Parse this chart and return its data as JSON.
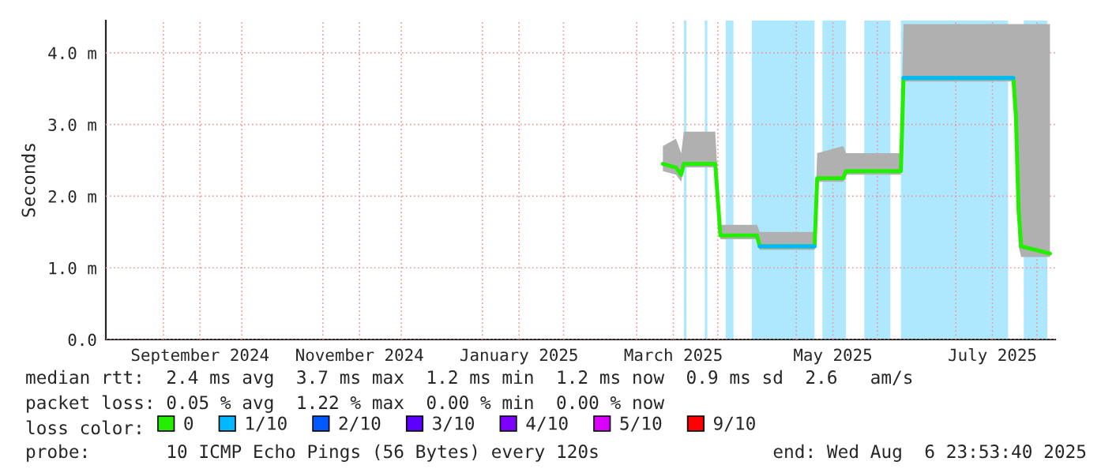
{
  "chart_data": {
    "type": "line",
    "ylabel": "Seconds",
    "xlim": [
      "2024-08-10",
      "2025-08-08"
    ],
    "xticks": [
      {
        "value": "2024-09-01",
        "label": null
      },
      {
        "value": "2024-09-15",
        "label": "September 2024"
      },
      {
        "value": "2024-10-01",
        "label": null
      },
      {
        "value": "2024-11-01",
        "label": null
      },
      {
        "value": "2024-11-15",
        "label": "November 2024"
      },
      {
        "value": "2024-12-01",
        "label": null
      },
      {
        "value": "2025-01-01",
        "label": null
      },
      {
        "value": "2025-01-15",
        "label": "January 2025"
      },
      {
        "value": "2025-02-01",
        "label": null
      },
      {
        "value": "2025-03-01",
        "label": null
      },
      {
        "value": "2025-03-15",
        "label": "March 2025"
      },
      {
        "value": "2025-04-01",
        "label": null
      },
      {
        "value": "2025-05-01",
        "label": null
      },
      {
        "value": "2025-05-15",
        "label": "May 2025"
      },
      {
        "value": "2025-06-01",
        "label": null
      },
      {
        "value": "2025-07-01",
        "label": null
      },
      {
        "value": "2025-07-15",
        "label": "July 2025"
      },
      {
        "value": "2025-08-01",
        "label": null
      }
    ],
    "ylim": [
      0,
      4.45
    ],
    "yticks": [
      {
        "value": 0,
        "label": "0.0"
      },
      {
        "value": 1,
        "label": "1.0 m"
      },
      {
        "value": 2,
        "label": "2.0 m"
      },
      {
        "value": 3,
        "label": "3.0 m"
      },
      {
        "value": 4,
        "label": "4.0 m"
      }
    ],
    "grid": true,
    "legend": "bottom",
    "legend_title": "loss color:",
    "series": [
      {
        "name": "0",
        "color": "#22ee00",
        "x": [
          "2025-03-11",
          "2025-03-16",
          "2025-03-18",
          "2025-03-19",
          "2025-03-31",
          "2025-04-02",
          "2025-04-16",
          "2025-04-17",
          "2025-05-08",
          "2025-05-09",
          "2025-05-19",
          "2025-05-20",
          "2025-06-10",
          "2025-06-11",
          "2025-07-23",
          "2025-07-24",
          "2025-07-25",
          "2025-07-26",
          "2025-08-06"
        ],
        "values": [
          2.45,
          2.4,
          2.3,
          2.45,
          2.45,
          1.45,
          1.45,
          1.3,
          1.3,
          2.25,
          2.25,
          2.35,
          2.35,
          3.65,
          3.65,
          3.1,
          1.8,
          1.3,
          1.2
        ],
        "lower": [
          2.35,
          2.3,
          2.2,
          2.4,
          2.4,
          1.4,
          1.4,
          1.25,
          1.25,
          2.2,
          2.2,
          2.3,
          2.3,
          3.6,
          3.6,
          2.9,
          1.3,
          1.15,
          1.15
        ],
        "upper": [
          2.7,
          2.8,
          2.6,
          2.9,
          2.9,
          1.6,
          1.6,
          1.5,
          1.5,
          2.6,
          2.7,
          2.6,
          2.6,
          4.4,
          4.4,
          4.4,
          4.4,
          4.4,
          4.4
        ]
      },
      {
        "name": "1/10",
        "color": "#00b8ff",
        "x": [
          "2025-04-17",
          "2025-05-08",
          "2025-05-09",
          "2025-06-11",
          "2025-07-23"
        ],
        "values": [
          1.3,
          1.3,
          null,
          3.65,
          3.65
        ]
      },
      {
        "name": "2/10",
        "color": "#0059ff"
      },
      {
        "name": "3/10",
        "color": "#5e00ff"
      },
      {
        "name": "4/10",
        "color": "#7e00ff"
      },
      {
        "name": "5/10",
        "color": "#dd00ff"
      },
      {
        "name": "9/10",
        "color": "#ff0000"
      }
    ],
    "bands": [
      {
        "axis": "x",
        "from": "2025-03-19",
        "to": "2025-03-20",
        "color": "#aee8ff"
      },
      {
        "axis": "x",
        "from": "2025-03-27",
        "to": "2025-03-28",
        "color": "#aee8ff"
      },
      {
        "axis": "x",
        "from": "2025-04-04",
        "to": "2025-04-07",
        "color": "#aee8ff"
      },
      {
        "axis": "x",
        "from": "2025-04-14",
        "to": "2025-05-08",
        "color": "#aee8ff"
      },
      {
        "axis": "x",
        "from": "2025-05-11",
        "to": "2025-05-20",
        "color": "#aee8ff"
      },
      {
        "axis": "x",
        "from": "2025-05-27",
        "to": "2025-06-06",
        "color": "#aee8ff"
      },
      {
        "axis": "x",
        "from": "2025-06-10",
        "to": "2025-07-21",
        "color": "#aee8ff"
      },
      {
        "axis": "x",
        "from": "2025-07-27",
        "to": "2025-08-05",
        "color": "#aee8ff"
      }
    ],
    "annotations": [
      "median rtt:  2.4 ms avg  3.7 ms max  1.2 ms min  1.2 ms now  0.9 ms sd  2.6   am/s",
      "packet loss: 0.05 % avg  1.22 % max  0.00 % min  0.00 % now",
      "probe:       10 ICMP Echo Pings (56 Bytes) every 120s",
      "end: Wed Aug  6 23:53:40 2025"
    ]
  }
}
